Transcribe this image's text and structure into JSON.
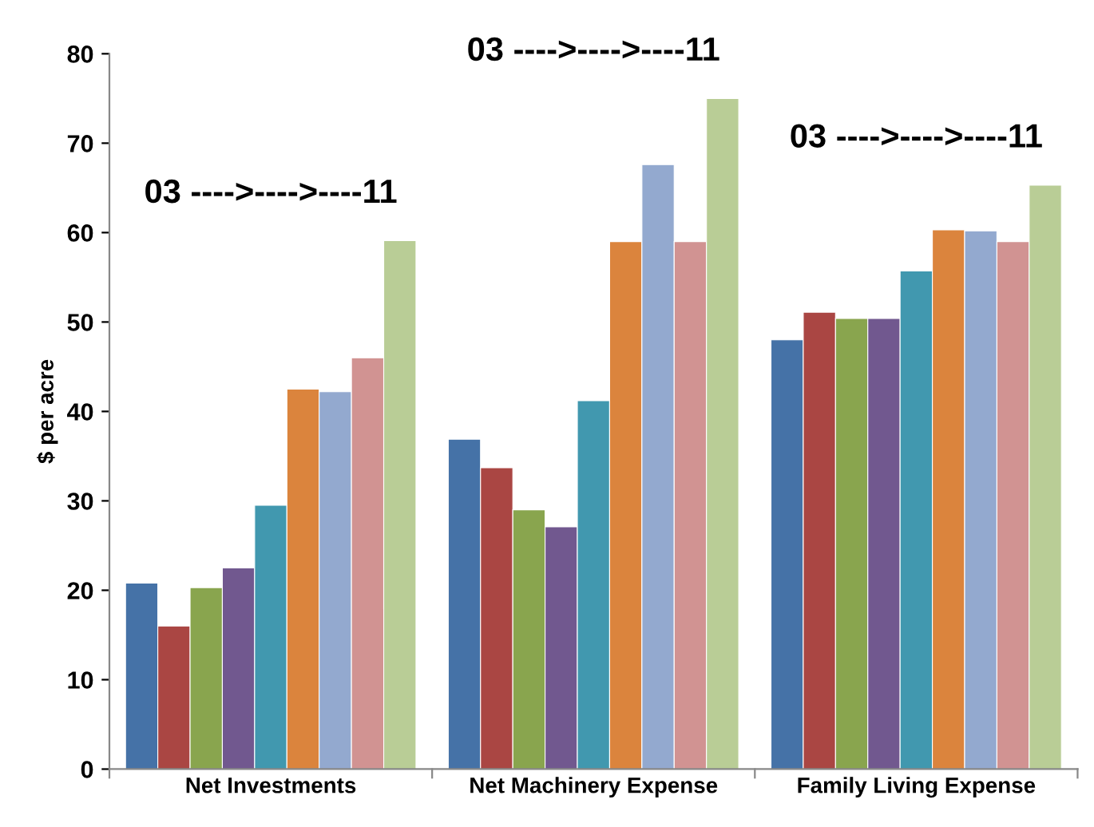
{
  "chart_data": {
    "type": "bar",
    "ylabel": "$ per acre",
    "categories": [
      "Net Investments",
      "Net Machinery Expense",
      "Family Living Expense"
    ],
    "series": [
      {
        "color": "#4572a7",
        "values": [
          20.8,
          36.9,
          48.0
        ]
      },
      {
        "color": "#aa4643",
        "values": [
          16.0,
          33.7,
          51.1
        ]
      },
      {
        "color": "#89a54e",
        "values": [
          20.3,
          29.0,
          50.4
        ]
      },
      {
        "color": "#71588f",
        "values": [
          22.5,
          27.1,
          50.4
        ]
      },
      {
        "color": "#4198af",
        "values": [
          29.5,
          41.2,
          55.7
        ]
      },
      {
        "color": "#db843d",
        "values": [
          42.5,
          59.0,
          60.3
        ]
      },
      {
        "color": "#93a9cf",
        "values": [
          42.2,
          67.6,
          60.2
        ]
      },
      {
        "color": "#d19392",
        "values": [
          46.0,
          59.0,
          59.0
        ]
      },
      {
        "color": "#b9cd96",
        "values": [
          59.1,
          75.0,
          65.3
        ]
      }
    ],
    "ylim": [
      0,
      80
    ],
    "yticks": [
      0,
      10,
      20,
      30,
      40,
      50,
      60,
      70,
      80
    ],
    "grid": false,
    "legend": false,
    "annotations": [
      "03 ---->---->----11",
      "03 ---->---->----11",
      "03 ---->---->----11"
    ]
  }
}
